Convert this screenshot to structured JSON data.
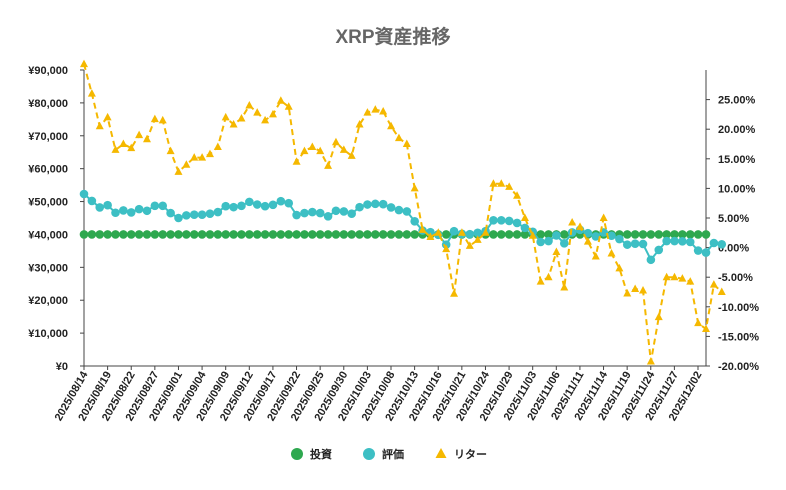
{
  "chart_data": {
    "type": "line",
    "title": "XRP資産推移",
    "xlabel": "",
    "ylabel": "",
    "ylim": [
      0,
      90000
    ],
    "y2lim": [
      -0.2,
      0.3
    ],
    "grid": false,
    "legend_position": "bottom",
    "y_ticks": [
      "¥0",
      "¥10,000",
      "¥20,000",
      "¥30,000",
      "¥40,000",
      "¥50,000",
      "¥60,000",
      "¥70,000",
      "¥80,000",
      "¥90,000"
    ],
    "y2_ticks": [
      "-20.00%",
      "-15.00%",
      "-10.00%",
      "-5.00%",
      "0.00%",
      "5.00%",
      "10.00%",
      "15.00%",
      "20.00%",
      "25.00%"
    ],
    "x_tick_labels": [
      "2025/08/14",
      "2025/08/19",
      "2025/08/22",
      "2025/08/27",
      "2025/09/01",
      "2025/09/04",
      "2025/09/09",
      "2025/09/12",
      "2025/09/17",
      "2025/09/22",
      "2025/09/25",
      "2025/09/30",
      "2025/10/03",
      "2025/10/08",
      "2025/10/13",
      "2025/10/16",
      "2025/10/21",
      "2025/10/24",
      "2025/10/29",
      "2025/11/03",
      "2025/11/06",
      "2025/11/11",
      "2025/11/14",
      "2025/11/19",
      "2025/11/24",
      "2025/11/27",
      "2025/12/02"
    ],
    "series": [
      {
        "name": "投資",
        "color": "#2ea84f",
        "marker": "circle",
        "axis": "left",
        "values": [
          40000,
          40000,
          40000,
          40000,
          40000,
          40000,
          40000,
          40000,
          40000,
          40000,
          40000,
          40000,
          40000,
          40000,
          40000,
          40000,
          40000,
          40000,
          40000,
          40000,
          40000,
          40000,
          40000,
          40000,
          40000,
          40000,
          40000,
          40000,
          40000,
          40000,
          40000,
          40000,
          40000,
          40000,
          40000,
          40000,
          40000,
          40000,
          40000,
          40000,
          40000,
          40000,
          40000,
          40000,
          40000,
          40000,
          40000,
          40000,
          40000,
          40000,
          40000,
          40000,
          40000,
          40000,
          40000,
          40000,
          40000,
          40000,
          40000,
          40000,
          40000,
          40000,
          40000,
          40000,
          40000,
          40000,
          40000,
          40000,
          40000,
          40000,
          40000,
          40000,
          40000,
          40000,
          40000,
          40000,
          40000,
          40000,
          40000,
          40000
        ]
      },
      {
        "name": "評価",
        "color": "#3dbfc4",
        "marker": "circle",
        "axis": "left",
        "values": [
          52300,
          50200,
          48200,
          48900,
          46600,
          47300,
          46700,
          47700,
          47200,
          48700,
          48700,
          46500,
          45000,
          45800,
          46000,
          46000,
          46300,
          46800,
          48600,
          48300,
          48700,
          49900,
          49100,
          48600,
          49000,
          50100,
          49500,
          45900,
          46500,
          46800,
          46500,
          45500,
          47200,
          47000,
          46300,
          48300,
          49100,
          49300,
          49200,
          48200,
          47400,
          47000,
          44000,
          41200,
          40700,
          39900,
          36900,
          41000,
          40200,
          40100,
          40500,
          41000,
          44300,
          44300,
          44100,
          43500,
          42000,
          40800,
          37700,
          38000,
          39700,
          37300,
          40600,
          41400,
          40400,
          39400,
          40600,
          39600,
          38600,
          36900,
          37200,
          37100,
          32300,
          35300,
          38000,
          38000,
          37900,
          37700,
          35100,
          34500,
          37400,
          37000
        ]
      },
      {
        "name": "リター",
        "color": "#f5b800",
        "marker": "triangle",
        "axis": "right",
        "values": [
          0.31,
          0.26,
          0.205,
          0.22,
          0.165,
          0.175,
          0.168,
          0.19,
          0.183,
          0.217,
          0.215,
          0.163,
          0.128,
          0.14,
          0.152,
          0.152,
          0.158,
          0.17,
          0.22,
          0.208,
          0.218,
          0.24,
          0.228,
          0.215,
          0.225,
          0.248,
          0.238,
          0.145,
          0.163,
          0.17,
          0.163,
          0.138,
          0.178,
          0.165,
          0.155,
          0.208,
          0.228,
          0.233,
          0.23,
          0.205,
          0.185,
          0.175,
          0.1,
          0.03,
          0.018,
          0.025,
          -0.0025,
          -0.078,
          0.025,
          0.003,
          0.013,
          0.025,
          0.1078,
          0.1078,
          0.1025,
          0.0875,
          0.05,
          0.02,
          -0.0575,
          -0.05,
          -0.0075,
          -0.0675,
          0.0425,
          0.035,
          0.01,
          -0.015,
          0.05,
          -0.01,
          -0.035,
          -0.0775,
          -0.07,
          -0.0725,
          -0.1925,
          -0.1175,
          -0.05,
          -0.05,
          -0.0525,
          -0.0575,
          -0.1275,
          -0.1375,
          -0.0625,
          -0.075
        ]
      }
    ]
  }
}
